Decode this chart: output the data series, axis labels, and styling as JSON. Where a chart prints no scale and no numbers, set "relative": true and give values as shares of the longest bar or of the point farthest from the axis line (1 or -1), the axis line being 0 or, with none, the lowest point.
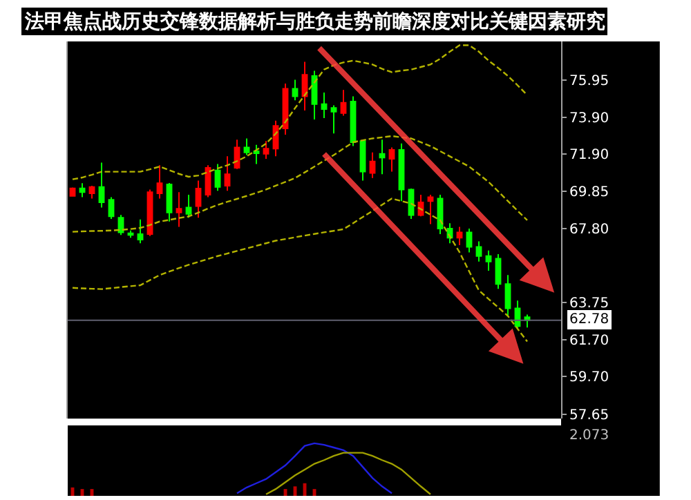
{
  "chart_data": [
    {
      "type": "candlestick",
      "title": "法甲焦点战历史交锋数据解析与胜负走势前瞻深度对比关键因素研究",
      "categories": [
        null,
        null,
        null,
        null,
        null,
        null,
        null,
        null,
        null,
        null,
        null,
        null,
        null,
        null,
        null,
        null,
        null,
        null,
        null,
        null,
        null,
        null,
        null,
        null,
        null,
        null,
        null,
        null,
        null,
        null,
        null,
        null,
        null,
        null,
        null,
        null,
        null,
        null,
        null,
        null,
        null,
        null,
        null,
        null,
        null,
        null,
        null,
        null,
        null,
        null,
        null
      ],
      "ohlc": [
        [
          69.59,
          70.05,
          69.55,
          70.01
        ],
        [
          70.01,
          70.29,
          69.52,
          69.8
        ],
        [
          69.73,
          70.15,
          69.45,
          70.08
        ],
        [
          70.08,
          71.41,
          68.96,
          69.24
        ],
        [
          69.38,
          69.52,
          68.33,
          68.47
        ],
        [
          68.4,
          68.55,
          67.45,
          67.6
        ],
        [
          67.55,
          67.7,
          67.3,
          67.45
        ],
        [
          67.5,
          68.3,
          67.0,
          67.2
        ],
        [
          67.5,
          69.94,
          67.4,
          69.8
        ],
        [
          69.73,
          71.27,
          69.45,
          70.29
        ],
        [
          70.22,
          70.3,
          68.19,
          68.68
        ],
        [
          68.68,
          69.8,
          67.9,
          68.89
        ],
        [
          68.96,
          69.66,
          68.4,
          68.61
        ],
        [
          69.03,
          70.43,
          68.4,
          70.0
        ],
        [
          69.66,
          71.27,
          69.52,
          71.13
        ],
        [
          70.99,
          71.34,
          69.87,
          70.08
        ],
        [
          70.15,
          71.76,
          69.87,
          70.78
        ],
        [
          71.13,
          72.67,
          71.06,
          72.25
        ],
        [
          72.25,
          72.74,
          71.83,
          71.97
        ],
        [
          72.04,
          72.39,
          71.34,
          71.92
        ],
        [
          71.9,
          72.6,
          71.62,
          72.18
        ],
        [
          72.18,
          73.71,
          71.76,
          73.43
        ],
        [
          73.29,
          75.74,
          72.95,
          75.46
        ],
        [
          75.46,
          75.95,
          74.83,
          75.04
        ],
        [
          75.04,
          76.93,
          74.27,
          76.23
        ],
        [
          76.16,
          76.44,
          73.78,
          74.62
        ],
        [
          74.62,
          75.25,
          73.85,
          74.34
        ],
        [
          74.41,
          74.55,
          73.01,
          74.2
        ],
        [
          74.13,
          75.39,
          73.99,
          74.69
        ],
        [
          74.76,
          75.04,
          72.32,
          72.53
        ],
        [
          72.6,
          72.67,
          70.43,
          70.92
        ],
        [
          70.85,
          71.97,
          70.57,
          71.48
        ],
        [
          71.9,
          72.67,
          70.78,
          71.69
        ],
        [
          71.62,
          72.25,
          70.92,
          72.11
        ],
        [
          72.11,
          72.46,
          69.31,
          69.94
        ],
        [
          69.94,
          70.0,
          68.33,
          68.54
        ],
        [
          68.54,
          69.66,
          68.47,
          69.24
        ],
        [
          69.31,
          69.66,
          68.05,
          69.52
        ],
        [
          69.45,
          69.66,
          67.5,
          67.8
        ],
        [
          67.8,
          68.1,
          67.0,
          67.3
        ],
        [
          67.3,
          67.9,
          66.9,
          67.6
        ],
        [
          67.6,
          67.8,
          66.5,
          66.8
        ],
        [
          66.8,
          67.1,
          66.0,
          66.3
        ],
        [
          66.3,
          66.6,
          65.5,
          66.0
        ],
        [
          66.16,
          66.4,
          64.5,
          64.77
        ],
        [
          64.77,
          65.26,
          63.02,
          63.44
        ],
        [
          63.44,
          63.86,
          62.32,
          62.46
        ],
        [
          62.95,
          63.1,
          62.39,
          62.78
        ],
        null,
        null,
        null
      ],
      "colors": [
        "#ff0000",
        "#00ff00",
        "#ff0000",
        "#00ff00",
        "#00ff00",
        "#00ff00",
        "#00ff00",
        "#00ff00",
        "#ff0000",
        "#ff0000",
        "#00ff00",
        "#ff0000",
        "#00ff00",
        "#ff0000",
        "#ff0000",
        "#00ff00",
        "#ff0000",
        "#ff0000",
        "#00ff00",
        "#00ff00",
        "#ff0000",
        "#ff0000",
        "#ff0000",
        "#00ff00",
        "#ff0000",
        "#00ff00",
        "#00ff00",
        "#00ff00",
        "#ff0000",
        "#00ff00",
        "#00ff00",
        "#ff0000",
        "#00ff00",
        "#ff0000",
        "#00ff00",
        "#00ff00",
        "#ff0000",
        "#ff0000",
        "#00ff00",
        "#00ff00",
        "#ff0000",
        "#00ff00",
        "#00ff00",
        "#00ff00",
        "#00ff00",
        "#00ff00",
        "#00ff00",
        "#00ff00",
        null,
        null,
        null
      ],
      "series": [
        {
          "type": "line",
          "color": "#b4b400",
          "line_style": "dashed",
          "values": [
            70.5,
            70.6,
            70.75,
            70.92,
            70.92,
            70.92,
            70.92,
            70.92,
            71.05,
            71.2,
            71.0,
            70.8,
            70.64,
            70.71,
            70.9,
            71.1,
            71.27,
            71.5,
            71.76,
            72.1,
            72.46,
            73.0,
            73.64,
            74.4,
            75.11,
            75.8,
            76.51,
            76.75,
            76.9,
            77.0,
            76.9,
            76.79,
            76.55,
            76.37,
            76.45,
            76.51,
            76.65,
            76.79,
            77.1,
            77.49,
            77.84,
            77.84,
            77.49,
            77.0,
            76.6,
            76.16,
            75.65,
            75.11,
            null,
            null,
            null
          ]
        },
        {
          "type": "line",
          "color": "#b4b400",
          "line_style": "dashed",
          "values": [
            67.63,
            67.65,
            67.67,
            67.68,
            67.7,
            67.73,
            67.78,
            67.84,
            68.0,
            68.19,
            68.28,
            68.38,
            68.47,
            68.68,
            68.9,
            69.1,
            69.27,
            69.43,
            69.59,
            69.76,
            69.94,
            70.15,
            70.36,
            70.57,
            70.88,
            71.2,
            71.52,
            71.83,
            72.18,
            72.53,
            72.64,
            72.74,
            72.8,
            72.87,
            72.8,
            72.74,
            72.53,
            72.32,
            72.04,
            71.76,
            71.48,
            71.2,
            70.78,
            70.36,
            69.84,
            69.31,
            68.78,
            68.26,
            null,
            null,
            null
          ]
        },
        {
          "type": "line",
          "color": "#b4b400",
          "line_style": "dashed",
          "values": [
            64.56,
            64.53,
            64.51,
            64.49,
            64.54,
            64.6,
            64.65,
            64.7,
            64.98,
            65.26,
            65.45,
            65.64,
            65.82,
            65.98,
            66.14,
            66.3,
            66.44,
            66.58,
            66.72,
            66.86,
            67.0,
            67.14,
            67.23,
            67.33,
            67.42,
            67.51,
            67.6,
            67.68,
            67.77,
            68.1,
            68.44,
            68.77,
            69.11,
            69.45,
            69.31,
            69.17,
            68.87,
            68.56,
            68.26,
            67.38,
            66.51,
            65.46,
            64.42,
            63.95,
            63.49,
            63.02,
            62.32,
            61.62,
            null,
            null,
            null
          ]
        }
      ],
      "ylim": [
        57.4,
        78.05
      ],
      "yticks": [
        75.95,
        {
          "value": 73.9,
          "label": "73.90"
        },
        {
          "value": 71.9,
          "label": "71.90"
        },
        69.85,
        {
          "value": 67.8,
          "label": "67.80"
        },
        63.75,
        {
          "value": 61.7,
          "label": "61.70"
        },
        {
          "value": 59.7,
          "label": "59.70"
        },
        57.65
      ],
      "tick_labels": "y",
      "ref_lines": [
        {
          "axis": "y",
          "value": 62.78,
          "label": "62.78",
          "color": "#606070"
        }
      ],
      "grid": false
    },
    {
      "type": "line",
      "relative": true,
      "categories": [
        null,
        null,
        null,
        null,
        null,
        null,
        null,
        null,
        null,
        null,
        null,
        null,
        null,
        null,
        null,
        null,
        null,
        null,
        null,
        null,
        null,
        null,
        null,
        null,
        null,
        null,
        null,
        null,
        null,
        null,
        null,
        null,
        null,
        null,
        null,
        null,
        null,
        null,
        null,
        null,
        null,
        null,
        null,
        null,
        null,
        null,
        null,
        null,
        null,
        null,
        null
      ],
      "series": [
        {
          "type": "bar",
          "color": "#c00000",
          "values": [
            0.16,
            0.13,
            0.13,
            null,
            null,
            null,
            null,
            null,
            null,
            null,
            null,
            null,
            null,
            null,
            null,
            null,
            null,
            null,
            null,
            null,
            null,
            null,
            0.13,
            0.18,
            0.24,
            0.13,
            null,
            null,
            null,
            null,
            null,
            null,
            null,
            null,
            null,
            null,
            null,
            null,
            null,
            null,
            null,
            null,
            null,
            null,
            null,
            null,
            null,
            null,
            null,
            null,
            null
          ]
        },
        {
          "type": "line",
          "color": "#2020e0",
          "values": [
            null,
            null,
            null,
            null,
            null,
            null,
            null,
            null,
            null,
            null,
            null,
            null,
            null,
            null,
            null,
            null,
            null,
            0.05,
            0.16,
            0.24,
            0.32,
            0.45,
            0.58,
            0.76,
            0.95,
            1.0,
            0.97,
            0.92,
            0.87,
            0.76,
            0.55,
            0.34,
            0.18,
            0.05,
            null,
            null,
            null,
            null,
            null,
            null,
            null,
            null,
            null,
            null,
            null,
            null,
            null,
            null,
            null,
            null,
            null
          ]
        },
        {
          "type": "line",
          "color": "#a0a000",
          "values": [
            null,
            null,
            null,
            null,
            null,
            null,
            null,
            null,
            null,
            null,
            null,
            null,
            null,
            null,
            null,
            null,
            null,
            null,
            null,
            null,
            0.03,
            0.13,
            0.26,
            0.39,
            0.5,
            0.61,
            0.68,
            0.76,
            0.82,
            0.82,
            0.82,
            0.76,
            0.68,
            0.61,
            0.5,
            0.34,
            0.18,
            0.03,
            null,
            null,
            null,
            null,
            null,
            null,
            null,
            null,
            null,
            null,
            null,
            null,
            null
          ]
        }
      ],
      "annotations": [
        "2.073"
      ],
      "grid": false
    }
  ]
}
